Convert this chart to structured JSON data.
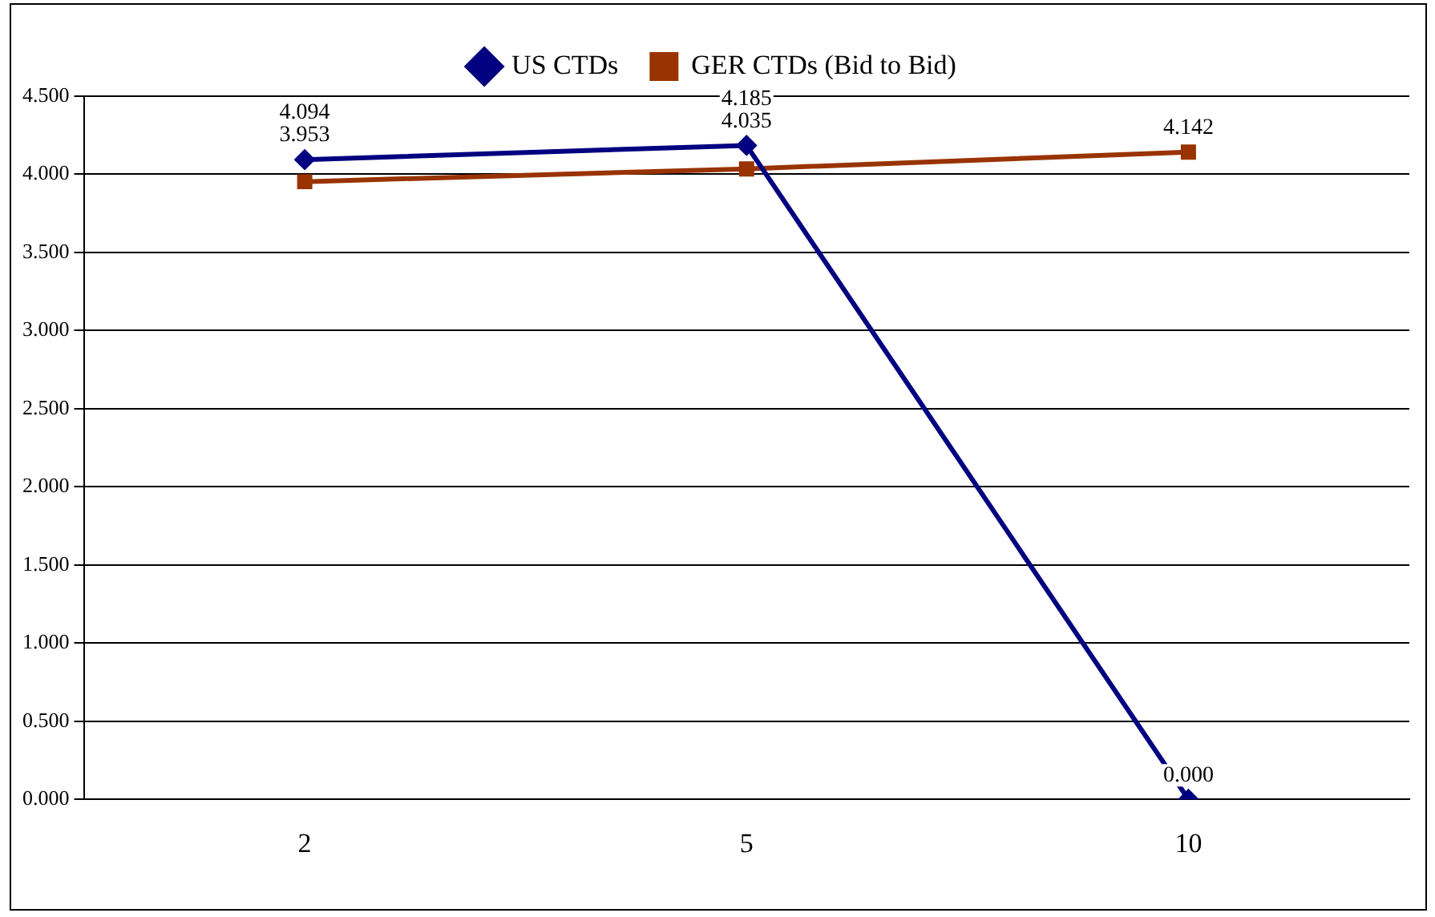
{
  "chart_data": {
    "type": "line",
    "categories": [
      "2",
      "5",
      "10"
    ],
    "series": [
      {
        "name": "US CTDs",
        "color": "#000080",
        "marker": "diamond",
        "values": [
          4.094,
          4.185,
          0.0
        ],
        "value_labels": [
          "4.094",
          "4.185",
          "0.000"
        ]
      },
      {
        "name": "GER CTDs (Bid to Bid)",
        "color": "#993300",
        "marker": "square",
        "values": [
          3.953,
          4.035,
          4.142
        ],
        "value_labels": [
          "3.953",
          "4.035",
          "4.142"
        ]
      }
    ],
    "ylim": [
      0,
      4.5
    ],
    "yticks": [
      {
        "value": 0,
        "label": "0.000"
      },
      {
        "value": 0.5,
        "label": "0.500"
      },
      {
        "value": 1,
        "label": "1.000"
      },
      {
        "value": 1.5,
        "label": "1.500"
      },
      {
        "value": 2,
        "label": "2.000"
      },
      {
        "value": 2.5,
        "label": "2.500"
      },
      {
        "value": 3,
        "label": "3.000"
      },
      {
        "value": 3.5,
        "label": "3.500"
      },
      {
        "value": 4,
        "label": "4.000"
      },
      {
        "value": 4.5,
        "label": "4.500"
      }
    ],
    "grid": "y",
    "legend": "top",
    "line_style": "solid"
  }
}
